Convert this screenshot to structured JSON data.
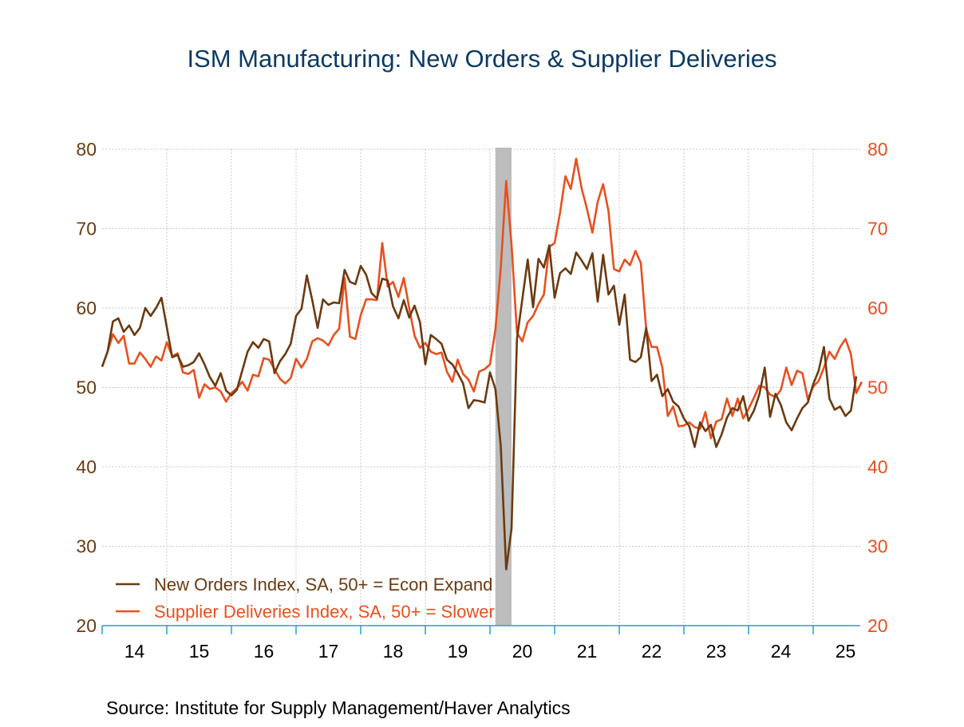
{
  "colors": {
    "title": "#0b3a66",
    "left_axis": "#6b3a10",
    "right_axis": "#e8501e",
    "new_orders": "#6b3a10",
    "supplier_deliveries": "#e8501e",
    "grid": "#c8c8c8",
    "recession": "#bdbdbd",
    "x_axis": "#2f9fc0"
  },
  "chart_data": {
    "type": "line",
    "title": "ISM Manufacturing: New Orders & Supplier Deliveries",
    "source": "Source:  Institute for Supply Management/Haver Analytics",
    "xlabel": "",
    "ylabel": "",
    "ylim": [
      20,
      80
    ],
    "y2lim": [
      20,
      80
    ],
    "yticks": [
      20,
      30,
      40,
      50,
      60,
      70,
      80
    ],
    "x_tick_labels": [
      "14",
      "15",
      "16",
      "17",
      "18",
      "19",
      "20",
      "21",
      "22",
      "23",
      "24",
      "25"
    ],
    "grid": true,
    "legend_position": "bottom-left",
    "recession_shading": {
      "start": "2020-02",
      "end": "2020-04"
    },
    "series": [
      {
        "name": "New Orders Index, SA, 50+ = Econ Expand",
        "axis": "left",
        "start": "2014-01",
        "frequency": "monthly",
        "values": [
          52.6,
          54.5,
          58.3,
          58.7,
          57.0,
          57.8,
          56.6,
          57.5,
          60.0,
          59.0,
          60.0,
          61.3,
          57.6,
          53.8,
          54.1,
          52.6,
          52.8,
          53.2,
          54.3,
          52.9,
          51.3,
          50.2,
          51.8,
          49.6,
          49.0,
          49.7,
          52.1,
          54.5,
          55.7,
          55.0,
          56.1,
          55.8,
          51.8,
          53.3,
          54.2,
          55.5,
          59.0,
          59.9,
          64.1,
          61.0,
          57.5,
          61.1,
          60.4,
          60.7,
          60.6,
          64.8,
          63.3,
          63.0,
          65.3,
          64.2,
          61.9,
          61.2,
          63.7,
          63.5,
          60.2,
          58.7,
          61.0,
          58.8,
          60.3,
          58.2,
          52.9,
          56.6,
          56.1,
          55.5,
          53.5,
          52.9,
          51.8,
          50.5,
          47.4,
          48.4,
          48.3,
          48.1,
          51.9,
          49.8,
          42.6,
          27.1,
          32.2,
          56.1,
          61.1,
          66.1,
          60.1,
          66.2,
          65.1,
          67.9,
          61.3,
          64.4,
          65.0,
          64.3,
          67.0,
          66.0,
          64.9,
          66.9,
          60.8,
          66.7,
          61.7,
          62.8,
          57.9,
          61.7,
          53.5,
          53.2,
          53.8,
          57.5,
          50.8,
          51.6,
          48.9,
          49.8,
          48.2,
          47.6,
          46.1,
          45.1,
          42.5,
          45.6,
          44.5,
          45.3,
          42.5,
          44.1,
          46.2,
          47.4,
          47.1,
          48.9,
          45.8,
          47.1,
          49.1,
          52.5,
          46.3,
          49.2,
          47.8,
          45.6,
          44.6,
          46.1,
          47.4,
          48.1,
          50.4,
          52.1,
          55.1,
          48.6,
          47.2,
          47.6,
          46.4,
          47.1,
          51.4
        ]
      },
      {
        "name": "Supplier Deliveries Index, SA, 50+ = Slower",
        "axis": "right",
        "start": "2014-01",
        "frequency": "monthly",
        "values": [
          52.6,
          54.5,
          56.7,
          55.6,
          56.5,
          53.0,
          53.0,
          54.4,
          53.6,
          52.6,
          53.9,
          53.4,
          55.7,
          53.9,
          54.3,
          51.9,
          51.7,
          52.2,
          48.7,
          50.4,
          49.8,
          50.0,
          49.5,
          48.2,
          49.3,
          49.9,
          50.7,
          49.6,
          51.6,
          51.4,
          53.7,
          53.5,
          52.3,
          51.1,
          50.5,
          51.2,
          53.6,
          52.5,
          53.6,
          55.8,
          56.2,
          55.9,
          55.3,
          56.6,
          57.4,
          63.8,
          56.4,
          56.1,
          59.1,
          61.1,
          61.1,
          61.0,
          68.2,
          62.7,
          63.3,
          61.4,
          63.8,
          60.0,
          56.5,
          55.0,
          55.6,
          54.5,
          54.2,
          54.4,
          52.0,
          50.7,
          53.5,
          51.7,
          51.0,
          49.5,
          52.0,
          52.3,
          52.9,
          57.3,
          65.0,
          76.0,
          68.0,
          56.9,
          55.8,
          58.2,
          59.0,
          60.5,
          61.7,
          67.7,
          68.2,
          72.0,
          76.6,
          75.0,
          78.8,
          75.1,
          72.5,
          69.5,
          73.4,
          75.6,
          72.2,
          64.9,
          64.6,
          66.1,
          65.4,
          67.2,
          65.7,
          57.3,
          55.1,
          55.1,
          52.5,
          46.4,
          47.6,
          45.1,
          45.2,
          45.6,
          45.0,
          44.8,
          46.9,
          43.6,
          45.7,
          46.0,
          48.6,
          46.4,
          48.6,
          46.1,
          47.3,
          48.7,
          50.2,
          50.0,
          49.1,
          48.8,
          49.7,
          52.5,
          50.3,
          52.1,
          51.8,
          48.5,
          50.1,
          50.8,
          52.5,
          54.5,
          53.6,
          55.1,
          56.1,
          54.2,
          49.3,
          50.7
        ]
      }
    ]
  }
}
